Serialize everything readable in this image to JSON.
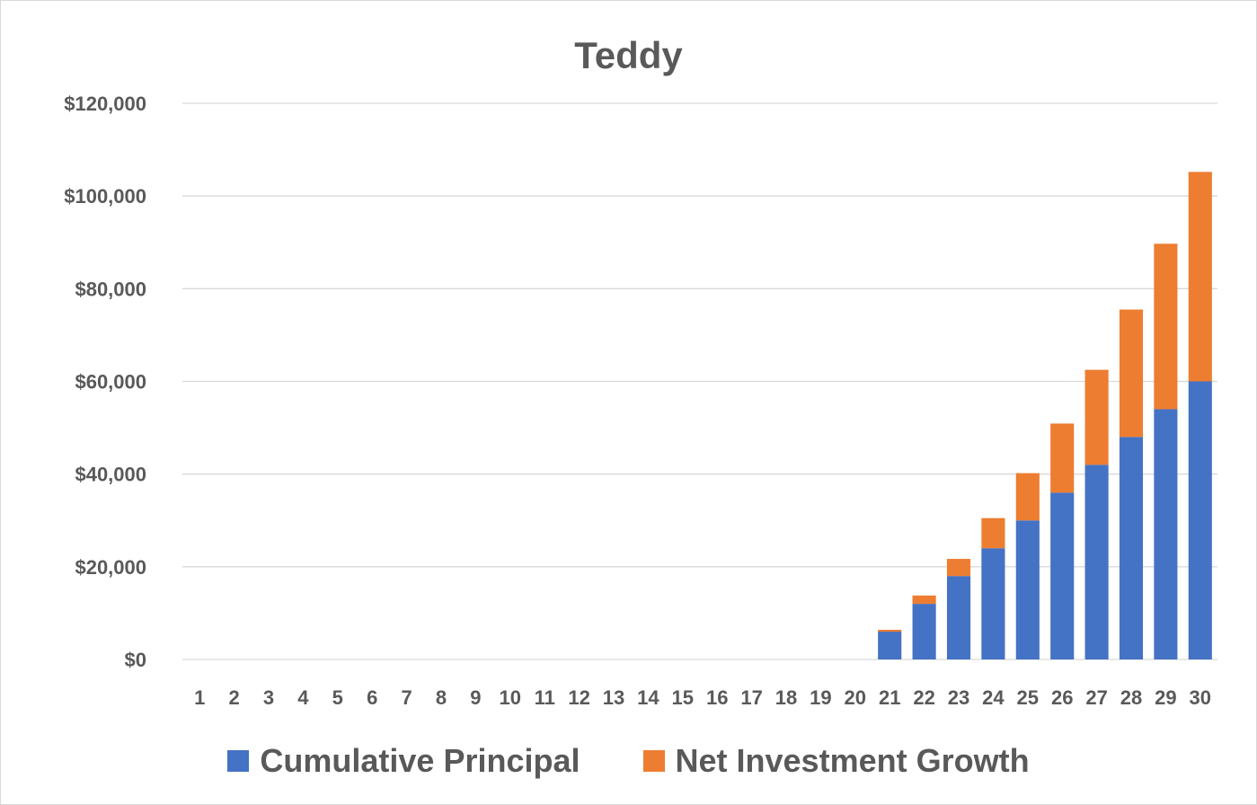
{
  "chart_data": {
    "type": "bar",
    "stacked": true,
    "title": "Teddy",
    "categories": [
      "1",
      "2",
      "3",
      "4",
      "5",
      "6",
      "7",
      "8",
      "9",
      "10",
      "11",
      "12",
      "13",
      "14",
      "15",
      "16",
      "17",
      "18",
      "19",
      "20",
      "21",
      "22",
      "23",
      "24",
      "25",
      "26",
      "27",
      "28",
      "29",
      "30"
    ],
    "series": [
      {
        "name": "Cumulative Principal",
        "color": "#4472c4",
        "values": [
          0,
          0,
          0,
          0,
          0,
          0,
          0,
          0,
          0,
          0,
          0,
          0,
          0,
          0,
          0,
          0,
          0,
          0,
          0,
          0,
          6000,
          12000,
          18000,
          24000,
          30000,
          36000,
          42000,
          48000,
          54000,
          60000
        ]
      },
      {
        "name": "Net Investment Growth",
        "color": "#ed7d31",
        "values": [
          0,
          0,
          0,
          0,
          0,
          0,
          0,
          0,
          0,
          0,
          0,
          0,
          0,
          0,
          0,
          0,
          0,
          0,
          0,
          0,
          400,
          1800,
          3700,
          6500,
          10200,
          14900,
          20500,
          27500,
          35700,
          45200
        ]
      }
    ],
    "ylim": [
      0,
      120000
    ],
    "yticks": [
      "$0",
      "$20,000",
      "$40,000",
      "$60,000",
      "$80,000",
      "$100,000",
      "$120,000"
    ],
    "grid": true,
    "legend": "bottom"
  }
}
